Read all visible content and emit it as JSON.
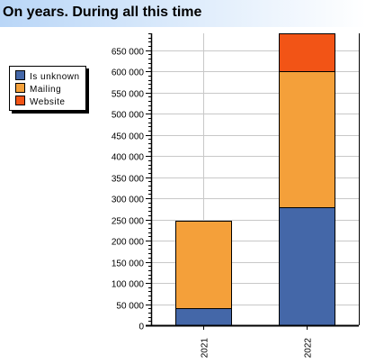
{
  "header": {
    "title": "On years. During all this time"
  },
  "legend": {
    "items": [
      {
        "label": "Is unknown",
        "color": "#4467a8"
      },
      {
        "label": "Mailing",
        "color": "#f4a03a"
      },
      {
        "label": "Website",
        "color": "#f25416"
      }
    ]
  },
  "chart_data": {
    "type": "bar",
    "stacked": true,
    "categories": [
      "2021",
      "2022"
    ],
    "series": [
      {
        "name": "Is unknown",
        "values": [
          40000,
          280000
        ],
        "color": "#4467a8"
      },
      {
        "name": "Mailing",
        "values": [
          208000,
          320000
        ],
        "color": "#f4a03a"
      },
      {
        "name": "Website",
        "values": [
          0,
          90000
        ],
        "color": "#f25416"
      }
    ],
    "ylim": [
      0,
      690000
    ],
    "yticks": [
      {
        "value": 0,
        "label": "0"
      },
      {
        "value": 50000,
        "label": "50 000"
      },
      {
        "value": 100000,
        "label": "100 000"
      },
      {
        "value": 150000,
        "label": "150 000"
      },
      {
        "value": 200000,
        "label": "200 000"
      },
      {
        "value": 250000,
        "label": "250 000"
      },
      {
        "value": 300000,
        "label": "300 000"
      },
      {
        "value": 350000,
        "label": "350 000"
      },
      {
        "value": 400000,
        "label": "400 000"
      },
      {
        "value": 450000,
        "label": "450 000"
      },
      {
        "value": 500000,
        "label": "500 000"
      },
      {
        "value": 550000,
        "label": "550 000"
      },
      {
        "value": 600000,
        "label": "600 000"
      },
      {
        "value": 650000,
        "label": "650 000"
      }
    ],
    "grid": true,
    "legend_position": "left"
  }
}
